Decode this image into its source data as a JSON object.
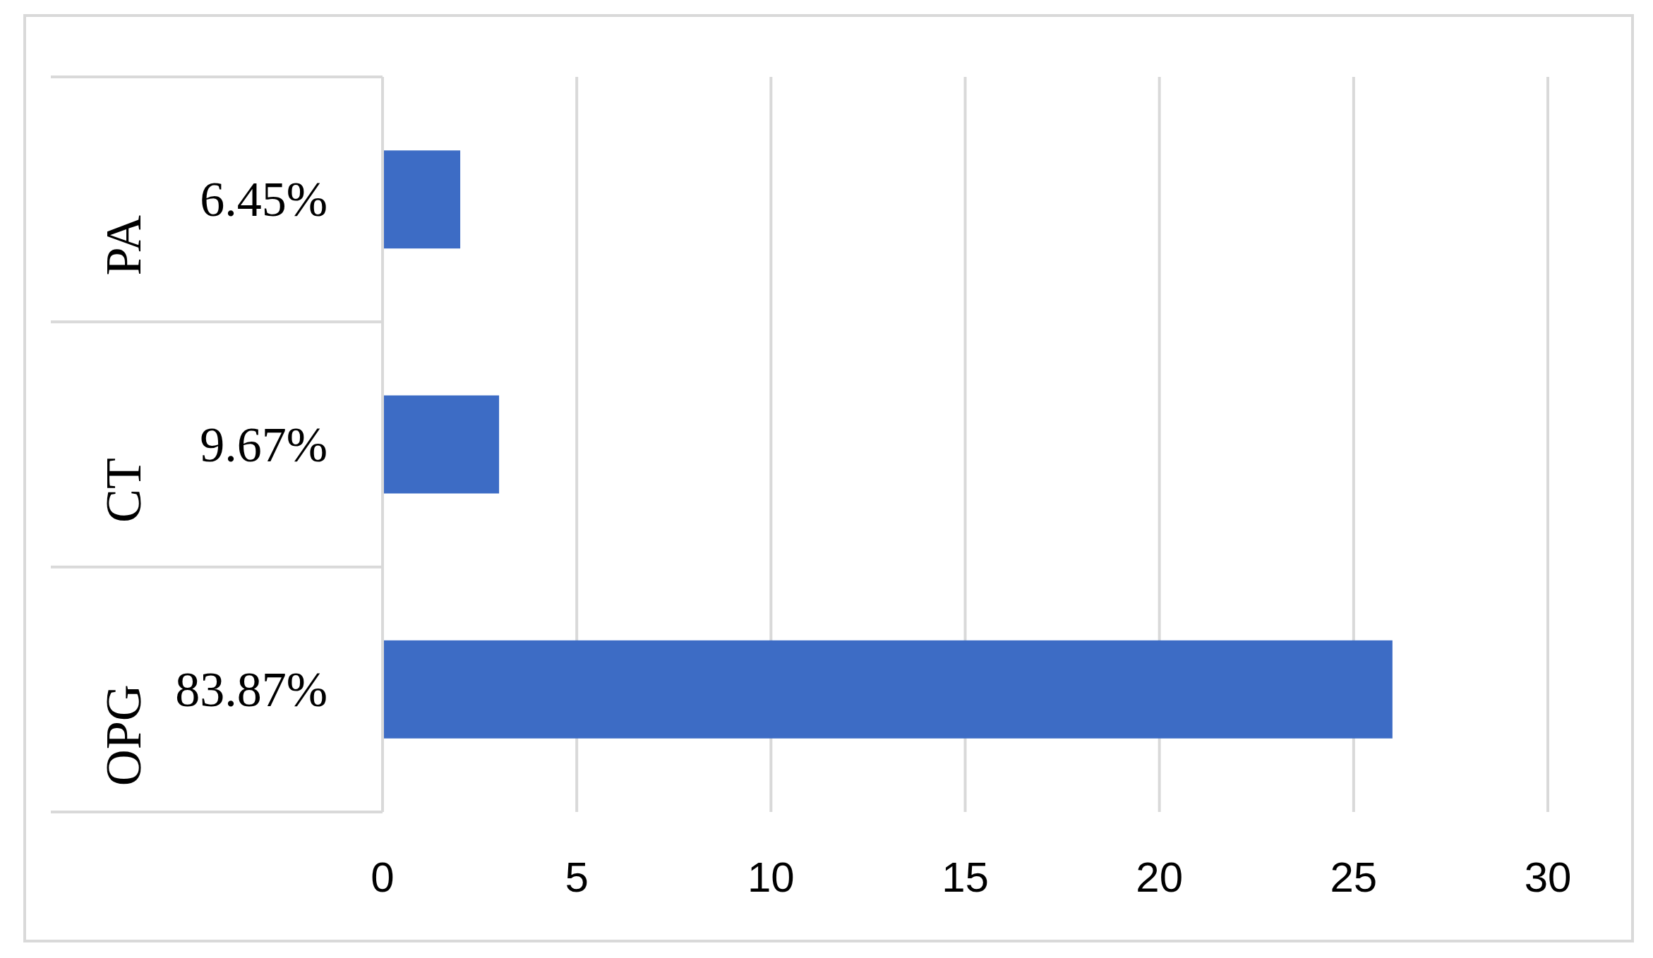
{
  "chart_data": {
    "type": "bar",
    "orientation": "horizontal",
    "categories": [
      "PA",
      "CT",
      "OPG"
    ],
    "values": [
      2,
      3,
      26
    ],
    "color": "#3d6cc5",
    "xlim": [
      0,
      30
    ],
    "xticks": [
      0,
      5,
      10,
      15,
      20,
      25,
      30
    ],
    "grid": "x",
    "annotations": [
      "6.45%",
      "9.67%",
      "83.87%"
    ]
  }
}
